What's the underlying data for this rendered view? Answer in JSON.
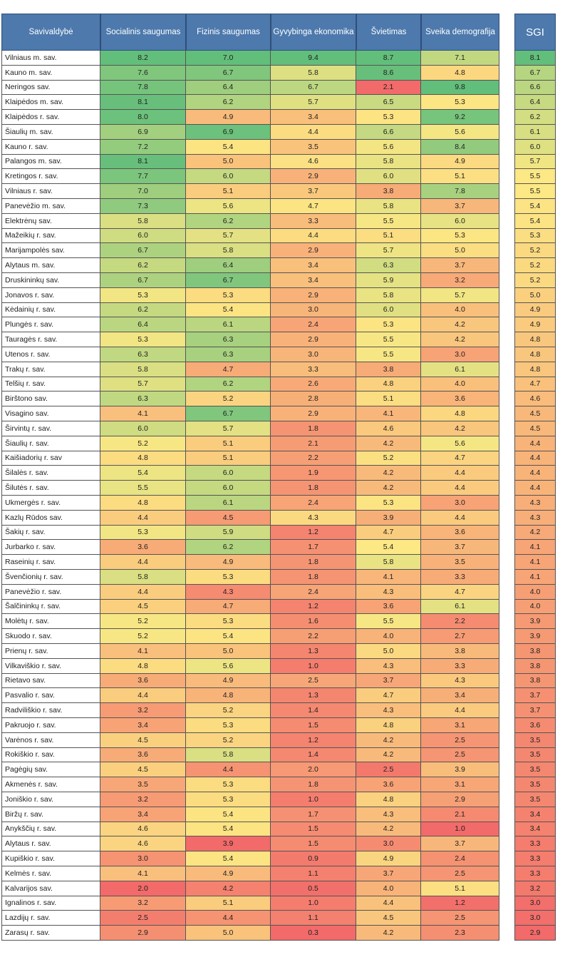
{
  "chart_data": {
    "type": "table",
    "columns": [
      "Savivaldybė",
      "Socialinis saugumas",
      "Fizinis saugumas",
      "Gyvybinga ekonomika",
      "Švietimas",
      "Sveika demografija"
    ],
    "sgi_header": "SGI",
    "rows": [
      {
        "name": "Vilniaus m. sav.",
        "values": [
          8.2,
          7.0,
          9.4,
          8.7,
          7.1
        ],
        "sgi": 8.1
      },
      {
        "name": "Kauno m. sav.",
        "values": [
          7.6,
          6.7,
          5.8,
          8.6,
          4.8
        ],
        "sgi": 6.7
      },
      {
        "name": "Neringos sav.",
        "values": [
          7.8,
          6.4,
          6.7,
          2.1,
          9.8
        ],
        "sgi": 6.6
      },
      {
        "name": "Klaipėdos m. sav.",
        "values": [
          8.1,
          6.2,
          5.7,
          6.5,
          5.3
        ],
        "sgi": 6.4
      },
      {
        "name": "Klaipėdos r. sav.",
        "values": [
          8.0,
          4.9,
          3.4,
          5.3,
          9.2
        ],
        "sgi": 6.2
      },
      {
        "name": "Šiaulių m. sav.",
        "values": [
          6.9,
          6.9,
          4.4,
          6.6,
          5.6
        ],
        "sgi": 6.1
      },
      {
        "name": "Kauno r. sav.",
        "values": [
          7.2,
          5.4,
          3.5,
          5.6,
          8.4
        ],
        "sgi": 6.0
      },
      {
        "name": "Palangos m. sav.",
        "values": [
          8.1,
          5.0,
          4.6,
          5.8,
          4.9
        ],
        "sgi": 5.7
      },
      {
        "name": "Kretingos r. sav.",
        "values": [
          7.7,
          6.0,
          2.9,
          6.0,
          5.1
        ],
        "sgi": 5.5
      },
      {
        "name": "Vilniaus r. sav.",
        "values": [
          7.0,
          5.1,
          3.7,
          3.8,
          7.8
        ],
        "sgi": 5.5
      },
      {
        "name": "Panevėžio m. sav.",
        "values": [
          7.3,
          5.6,
          4.7,
          5.8,
          3.7
        ],
        "sgi": 5.4
      },
      {
        "name": "Elektrėnų sav.",
        "values": [
          5.8,
          6.2,
          3.3,
          5.5,
          6.0
        ],
        "sgi": 5.4
      },
      {
        "name": "Mažeikių r. sav.",
        "values": [
          6.0,
          5.7,
          4.4,
          5.1,
          5.3
        ],
        "sgi": 5.3
      },
      {
        "name": "Marijampolės sav.",
        "values": [
          6.7,
          5.8,
          2.9,
          5.7,
          5.0
        ],
        "sgi": 5.2
      },
      {
        "name": "Alytaus m. sav.",
        "values": [
          6.2,
          6.4,
          3.4,
          6.3,
          3.7
        ],
        "sgi": 5.2
      },
      {
        "name": "Druskininkų sav.",
        "values": [
          6.7,
          6.7,
          3.4,
          5.9,
          3.2
        ],
        "sgi": 5.2
      },
      {
        "name": "Jonavos r. sav.",
        "values": [
          5.3,
          5.3,
          2.9,
          5.8,
          5.7
        ],
        "sgi": 5.0
      },
      {
        "name": "Kėdainių r. sav.",
        "values": [
          6.2,
          5.4,
          3.0,
          6.0,
          4.0
        ],
        "sgi": 4.9
      },
      {
        "name": "Plungės r. sav.",
        "values": [
          6.4,
          6.1,
          2.4,
          5.3,
          4.2
        ],
        "sgi": 4.9
      },
      {
        "name": "Tauragės r. sav.",
        "values": [
          5.3,
          6.3,
          2.9,
          5.5,
          4.2
        ],
        "sgi": 4.8
      },
      {
        "name": "Utenos r. sav.",
        "values": [
          6.3,
          6.3,
          3.0,
          5.5,
          3.0
        ],
        "sgi": 4.8
      },
      {
        "name": "Trakų r. sav.",
        "values": [
          5.8,
          4.7,
          3.3,
          3.8,
          6.1
        ],
        "sgi": 4.8
      },
      {
        "name": "Telšių r. sav.",
        "values": [
          5.7,
          6.2,
          2.6,
          4.8,
          4.0
        ],
        "sgi": 4.7
      },
      {
        "name": "Birštono sav.",
        "values": [
          6.3,
          5.2,
          2.8,
          5.1,
          3.6
        ],
        "sgi": 4.6
      },
      {
        "name": "Visagino sav.",
        "values": [
          4.1,
          6.7,
          2.9,
          4.1,
          4.8
        ],
        "sgi": 4.5
      },
      {
        "name": "Širvintų r. sav.",
        "values": [
          6.0,
          5.7,
          1.8,
          4.6,
          4.2
        ],
        "sgi": 4.5
      },
      {
        "name": "Šiaulių r. sav.",
        "values": [
          5.2,
          5.1,
          2.1,
          4.2,
          5.6
        ],
        "sgi": 4.4
      },
      {
        "name": "Kaišiadorių r. sav",
        "values": [
          4.8,
          5.1,
          2.2,
          5.2,
          4.7
        ],
        "sgi": 4.4
      },
      {
        "name": "Šilalės r. sav.",
        "values": [
          5.4,
          6.0,
          1.9,
          4.2,
          4.4
        ],
        "sgi": 4.4
      },
      {
        "name": "Šilutės r. sav.",
        "values": [
          5.5,
          6.0,
          1.8,
          4.2,
          4.4
        ],
        "sgi": 4.4
      },
      {
        "name": "Ukmergės r. sav.",
        "values": [
          4.8,
          6.1,
          2.4,
          5.3,
          3.0
        ],
        "sgi": 4.3
      },
      {
        "name": "Kazlų Rūdos sav.",
        "values": [
          4.4,
          4.5,
          4.3,
          3.9,
          4.4
        ],
        "sgi": 4.3
      },
      {
        "name": "Šakių r. sav.",
        "values": [
          5.3,
          5.9,
          1.2,
          4.7,
          3.6
        ],
        "sgi": 4.2
      },
      {
        "name": "Jurbarko r. sav.",
        "values": [
          3.6,
          6.2,
          1.7,
          5.4,
          3.7
        ],
        "sgi": 4.1
      },
      {
        "name": "Raseinių r. sav.",
        "values": [
          4.4,
          4.9,
          1.8,
          5.8,
          3.5
        ],
        "sgi": 4.1
      },
      {
        "name": "Švenčionių r. sav.",
        "values": [
          5.8,
          5.3,
          1.8,
          4.1,
          3.3
        ],
        "sgi": 4.1
      },
      {
        "name": "Panevėžio r. sav.",
        "values": [
          4.4,
          4.3,
          2.4,
          4.3,
          4.7
        ],
        "sgi": 4.0
      },
      {
        "name": "Šalčininkų r. sav.",
        "values": [
          4.5,
          4.7,
          1.2,
          3.6,
          6.1
        ],
        "sgi": 4.0
      },
      {
        "name": "Molėtų r. sav.",
        "values": [
          5.2,
          5.3,
          1.6,
          5.5,
          2.2
        ],
        "sgi": 3.9
      },
      {
        "name": "Skuodo r. sav.",
        "values": [
          5.2,
          5.4,
          2.2,
          4.0,
          2.7
        ],
        "sgi": 3.9
      },
      {
        "name": "Prienų r. sav.",
        "values": [
          4.1,
          5.0,
          1.3,
          5.0,
          3.8
        ],
        "sgi": 3.8
      },
      {
        "name": "Vilkaviškio r. sav.",
        "values": [
          4.8,
          5.6,
          1.0,
          4.3,
          3.3
        ],
        "sgi": 3.8
      },
      {
        "name": "Rietavo sav.",
        "values": [
          3.6,
          4.9,
          2.5,
          3.7,
          4.3
        ],
        "sgi": 3.8
      },
      {
        "name": "Pasvalio r. sav.",
        "values": [
          4.4,
          4.8,
          1.3,
          4.7,
          3.4
        ],
        "sgi": 3.7
      },
      {
        "name": "Radviliškio r. sav.",
        "values": [
          3.2,
          5.2,
          1.4,
          4.3,
          4.4
        ],
        "sgi": 3.7
      },
      {
        "name": "Pakruojo r. sav.",
        "values": [
          3.4,
          5.3,
          1.5,
          4.8,
          3.1
        ],
        "sgi": 3.6
      },
      {
        "name": "Varėnos r. sav.",
        "values": [
          4.5,
          5.2,
          1.2,
          4.2,
          2.5
        ],
        "sgi": 3.5
      },
      {
        "name": "Rokiškio r. sav.",
        "values": [
          3.6,
          5.8,
          1.4,
          4.2,
          2.5
        ],
        "sgi": 3.5
      },
      {
        "name": "Pagėgių sav.",
        "values": [
          4.5,
          4.4,
          2.0,
          2.5,
          3.9
        ],
        "sgi": 3.5
      },
      {
        "name": "Akmenės r. sav.",
        "values": [
          3.5,
          5.3,
          1.8,
          3.6,
          3.1
        ],
        "sgi": 3.5
      },
      {
        "name": "Joniškio r. sav.",
        "values": [
          3.2,
          5.3,
          1.0,
          4.8,
          2.9
        ],
        "sgi": 3.5
      },
      {
        "name": "Biržų r. sav.",
        "values": [
          3.4,
          5.4,
          1.7,
          4.3,
          2.1
        ],
        "sgi": 3.4
      },
      {
        "name": "Anykščių r. sav.",
        "values": [
          4.6,
          5.4,
          1.5,
          4.2,
          1.0
        ],
        "sgi": 3.4
      },
      {
        "name": "Alytaus r. sav.",
        "values": [
          4.6,
          3.9,
          1.5,
          3.0,
          3.7
        ],
        "sgi": 3.3
      },
      {
        "name": "Kupiškio r. sav.",
        "values": [
          3.0,
          5.4,
          0.9,
          4.9,
          2.4
        ],
        "sgi": 3.3
      },
      {
        "name": "Kelmės r. sav.",
        "values": [
          4.1,
          4.9,
          1.1,
          3.7,
          2.5
        ],
        "sgi": 3.3
      },
      {
        "name": "Kalvarijos sav.",
        "values": [
          2.0,
          4.2,
          0.5,
          4.0,
          5.1
        ],
        "sgi": 3.2
      },
      {
        "name": "Ignalinos r. sav.",
        "values": [
          3.2,
          5.1,
          1.0,
          4.4,
          1.2
        ],
        "sgi": 3.0
      },
      {
        "name": "Lazdijų r. sav.",
        "values": [
          2.5,
          4.4,
          1.1,
          4.5,
          2.5
        ],
        "sgi": 3.0
      },
      {
        "name": "Zarasų r. sav.",
        "values": [
          2.9,
          5.0,
          0.3,
          4.2,
          2.3
        ],
        "sgi": 2.9
      }
    ]
  }
}
